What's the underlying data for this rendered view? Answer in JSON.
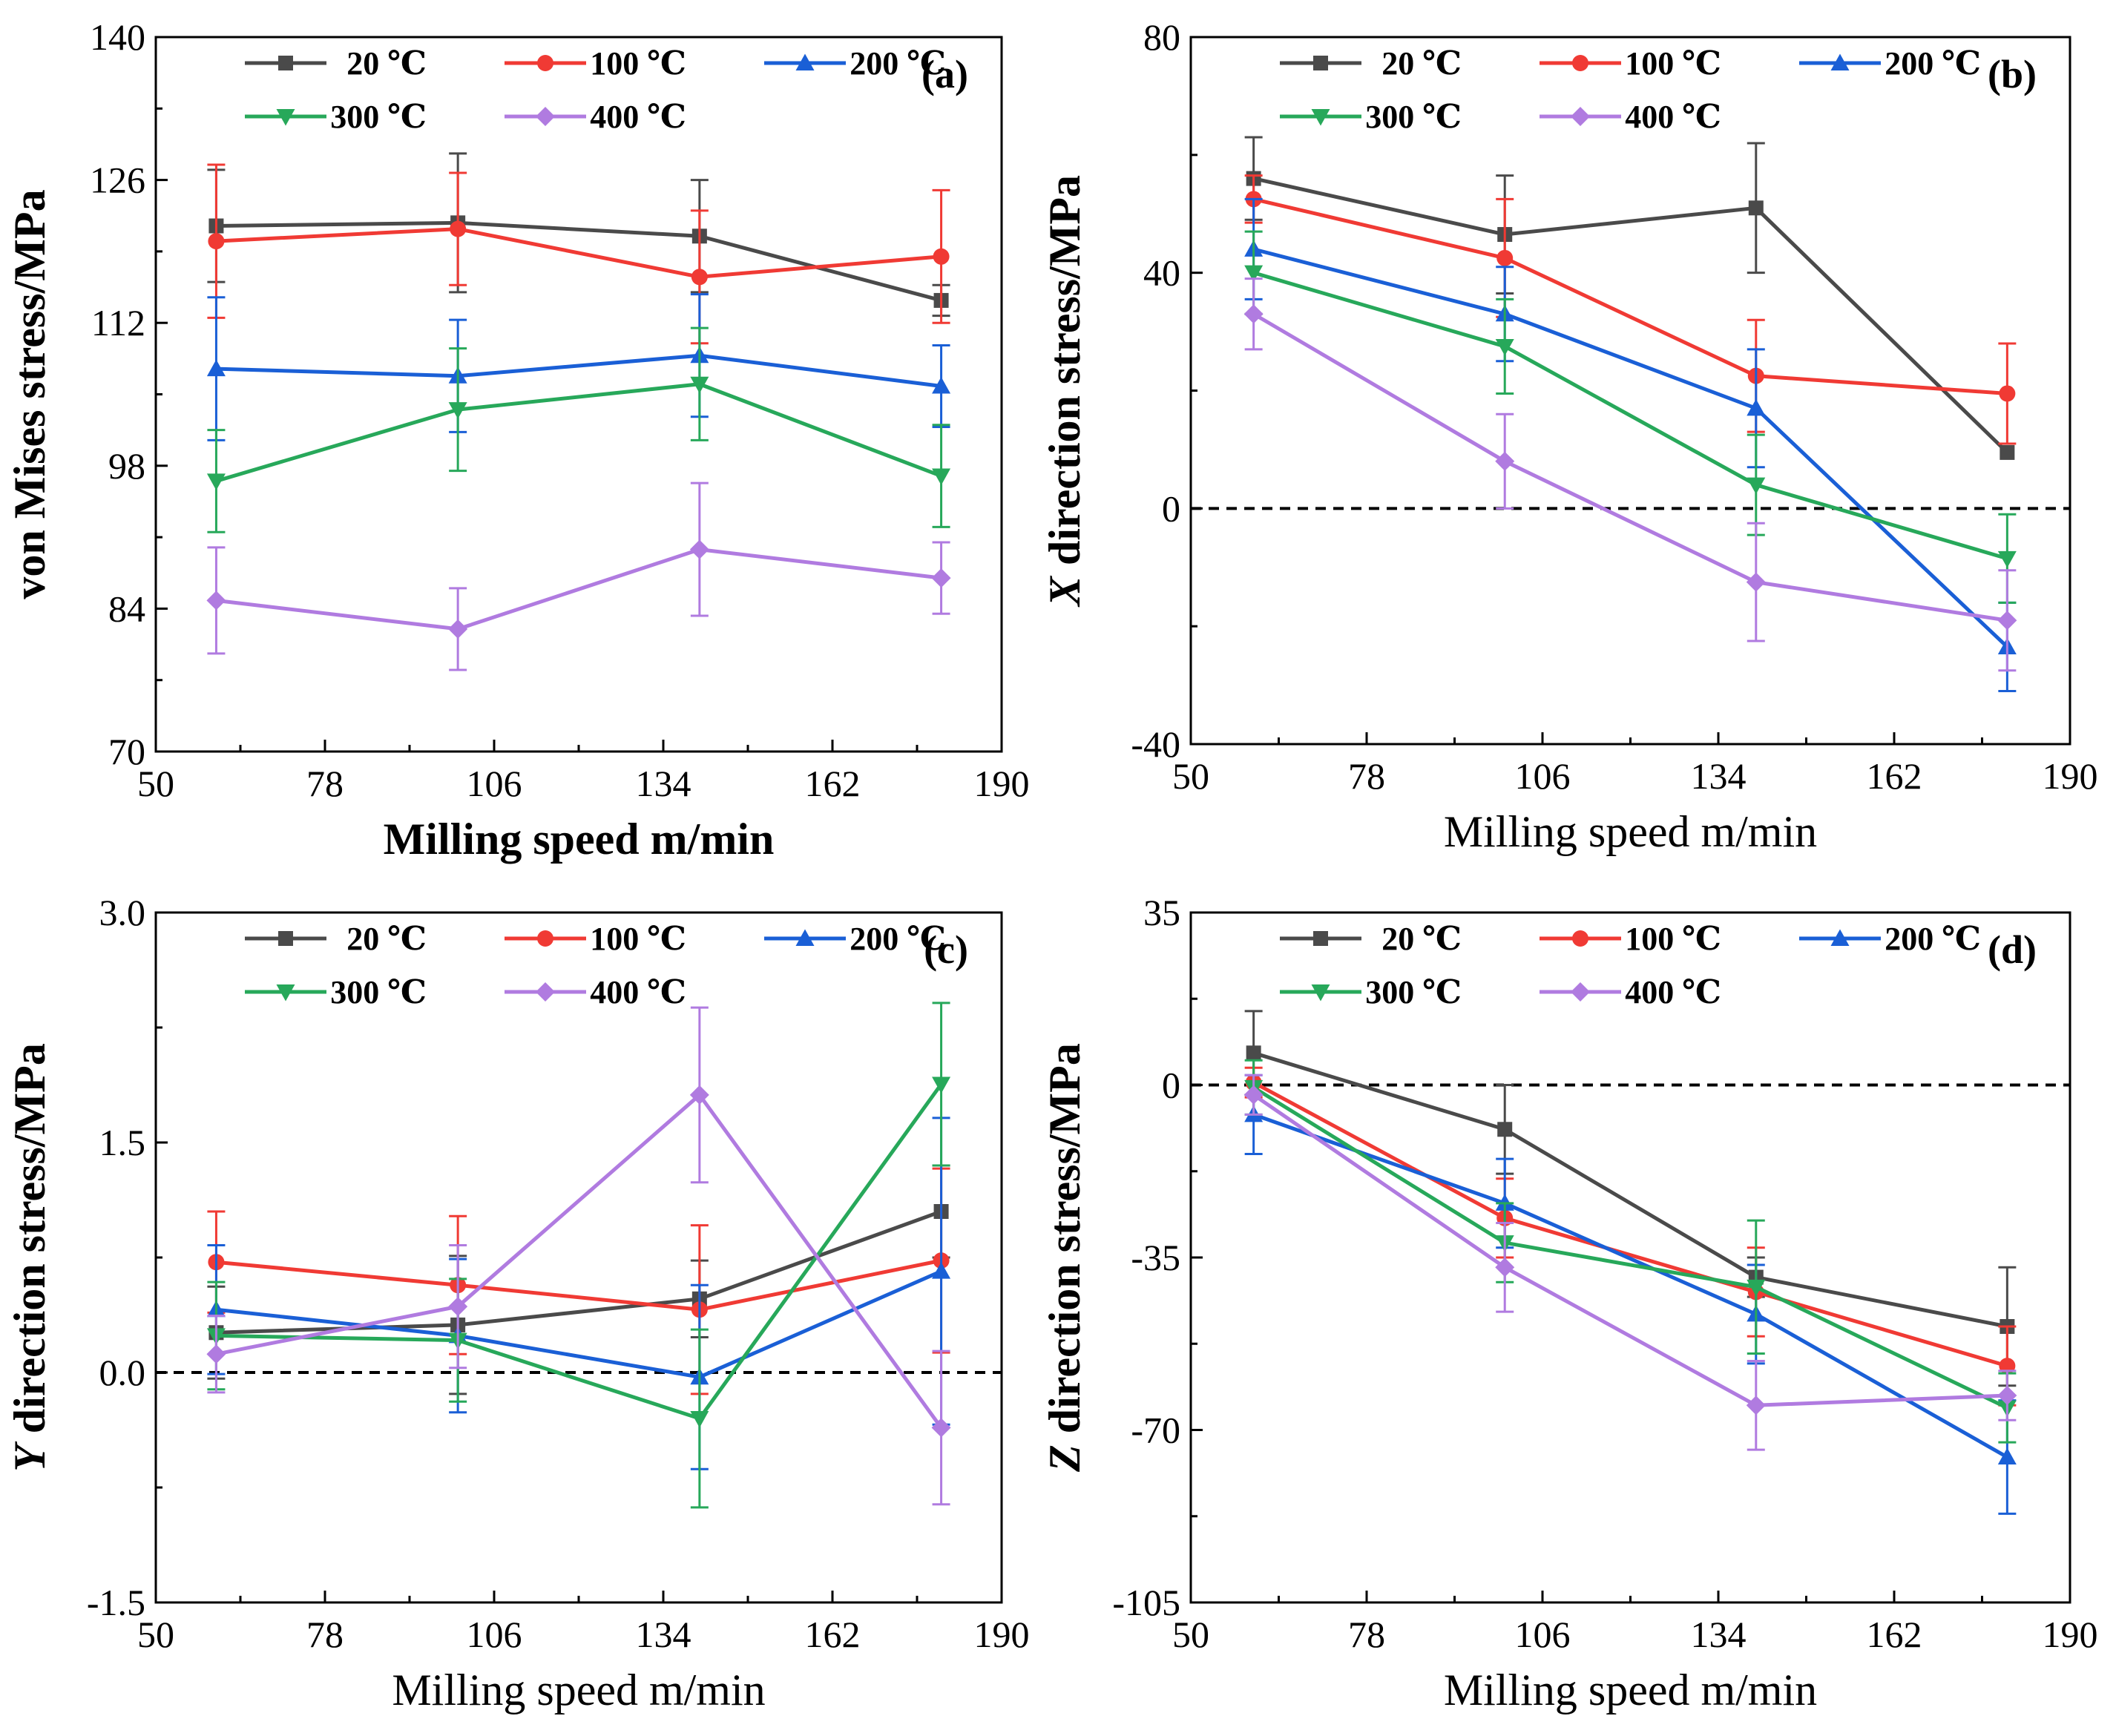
{
  "chart_data": [
    {
      "type": "line",
      "panel_label": "(a)",
      "title": "",
      "xlabel": "Milling speed m/min",
      "ylabel": "von Mises stress/MPa",
      "xlim": [
        50,
        190
      ],
      "ylim": [
        70,
        140
      ],
      "xticks": [
        50,
        78,
        106,
        134,
        162,
        190
      ],
      "yticks": [
        70,
        84,
        98,
        112,
        126,
        140
      ],
      "xtick_labels": [
        "50",
        "78",
        "106",
        "134",
        "162",
        "190"
      ],
      "ytick_labels": [
        "70",
        "84",
        "98",
        "112",
        "126",
        "140"
      ],
      "zero_line": false,
      "x": [
        60,
        100,
        140,
        180
      ],
      "legend": "top",
      "series": [
        {
          "name": "20 ℃",
          "color": "#4a4a4a",
          "marker": "square",
          "values": [
            121.5,
            121.8,
            120.5,
            114.2
          ],
          "errors": [
            5.5,
            6.8,
            5.5,
            1.5
          ]
        },
        {
          "name": "100 ℃",
          "color": "#f03a34",
          "marker": "circle",
          "values": [
            120.0,
            121.2,
            116.5,
            118.5
          ],
          "errors": [
            7.5,
            5.5,
            6.5,
            6.5
          ]
        },
        {
          "name": "200 ℃",
          "color": "#1a5fd6",
          "marker": "triangle-up",
          "values": [
            107.5,
            106.8,
            108.8,
            105.8
          ],
          "errors": [
            7.0,
            5.5,
            6.0,
            4.0
          ]
        },
        {
          "name": "300 ℃",
          "color": "#27a85a",
          "marker": "triangle-down",
          "values": [
            96.5,
            103.5,
            106.0,
            97.0
          ],
          "errors": [
            5.0,
            6.0,
            5.5,
            5.0
          ]
        },
        {
          "name": "400 ℃",
          "color": "#b07be0",
          "marker": "diamond",
          "values": [
            84.8,
            82.0,
            89.8,
            87.0
          ],
          "errors": [
            5.2,
            4.0,
            6.5,
            3.5
          ]
        }
      ]
    },
    {
      "type": "line",
      "panel_label": "(b)",
      "title": "",
      "xlabel": "Milling speed m/min",
      "ylabel_italic": "X",
      "ylabel": " direction stress/MPa",
      "xlim": [
        50,
        190
      ],
      "ylim": [
        -40,
        80
      ],
      "xticks": [
        50,
        78,
        106,
        134,
        162,
        190
      ],
      "yticks": [
        -40,
        0,
        40,
        80
      ],
      "xtick_labels": [
        "50",
        "78",
        "106",
        "134",
        "162",
        "190"
      ],
      "ytick_labels": [
        "-40",
        "0",
        "40",
        "80"
      ],
      "zero_line": true,
      "x": [
        60,
        100,
        140,
        180
      ],
      "legend": "top",
      "series": [
        {
          "name": "20 ℃",
          "color": "#4a4a4a",
          "marker": "square",
          "values": [
            56.0,
            46.5,
            51.0,
            9.5
          ],
          "errors": [
            7.0,
            10.0,
            11.0,
            0.0
          ]
        },
        {
          "name": "100 ℃",
          "color": "#f03a34",
          "marker": "circle",
          "values": [
            52.5,
            42.5,
            22.5,
            19.5
          ],
          "errors": [
            4.0,
            10.0,
            9.5,
            8.5
          ]
        },
        {
          "name": "200 ℃",
          "color": "#1a5fd6",
          "marker": "triangle-up",
          "values": [
            44.0,
            33.0,
            17.0,
            -23.5
          ],
          "errors": [
            8.5,
            8.0,
            10.0,
            7.5
          ]
        },
        {
          "name": "300 ℃",
          "color": "#27a85a",
          "marker": "triangle-down",
          "values": [
            40.0,
            27.5,
            4.0,
            -8.5
          ],
          "errors": [
            7.0,
            8.0,
            8.5,
            7.5
          ]
        },
        {
          "name": "400 ℃",
          "color": "#b07be0",
          "marker": "diamond",
          "values": [
            33.0,
            8.0,
            -12.5,
            -19.0
          ],
          "errors": [
            6.0,
            8.0,
            10.0,
            8.5
          ]
        }
      ]
    },
    {
      "type": "line",
      "panel_label": "(c)",
      "title": "",
      "xlabel": "Milling speed m/min",
      "ylabel_italic": "Y",
      "ylabel": " direction stress/MPa",
      "xlim": [
        50,
        190
      ],
      "ylim": [
        -1.5,
        3.0
      ],
      "xticks": [
        50,
        78,
        106,
        134,
        162,
        190
      ],
      "yticks": [
        -1.5,
        0,
        1.5,
        3.0
      ],
      "xtick_labels": [
        "50",
        "78",
        "106",
        "134",
        "162",
        "190"
      ],
      "ytick_labels": [
        "-1.5",
        "0.0",
        "1.5",
        "3.0"
      ],
      "zero_line": true,
      "x": [
        60,
        100,
        140,
        180
      ],
      "legend": "top",
      "series": [
        {
          "name": "20 ℃",
          "color": "#4a4a4a",
          "marker": "square",
          "values": [
            0.26,
            0.31,
            0.48,
            1.05
          ],
          "errors": [
            0.3,
            0.45,
            0.25,
            0.3
          ]
        },
        {
          "name": "100 ℃",
          "color": "#f03a34",
          "marker": "circle",
          "values": [
            0.72,
            0.57,
            0.41,
            0.73
          ],
          "errors": [
            0.33,
            0.45,
            0.55,
            0.6
          ]
        },
        {
          "name": "200 ℃",
          "color": "#1a5fd6",
          "marker": "triangle-up",
          "values": [
            0.41,
            0.24,
            -0.03,
            0.66
          ],
          "errors": [
            0.42,
            0.5,
            0.6,
            1.0
          ]
        },
        {
          "name": "300 ℃",
          "color": "#27a85a",
          "marker": "triangle-down",
          "values": [
            0.24,
            0.21,
            -0.3,
            1.88
          ],
          "errors": [
            0.35,
            0.4,
            0.58,
            0.53
          ]
        },
        {
          "name": "400 ℃",
          "color": "#b07be0",
          "marker": "diamond",
          "values": [
            0.12,
            0.43,
            1.81,
            -0.36
          ],
          "errors": [
            0.25,
            0.4,
            0.57,
            0.5
          ]
        }
      ]
    },
    {
      "type": "line",
      "panel_label": "(d)",
      "title": "",
      "xlabel": "Milling speed m/min",
      "ylabel_italic": "Z",
      "ylabel": " direction stress/MPa",
      "xlim": [
        50,
        190
      ],
      "ylim": [
        -105,
        35
      ],
      "xticks": [
        50,
        78,
        106,
        134,
        162,
        190
      ],
      "yticks": [
        -105,
        -70,
        -35,
        0,
        35
      ],
      "xtick_labels": [
        "50",
        "78",
        "106",
        "134",
        "162",
        "190"
      ],
      "ytick_labels": [
        "-105",
        "-70",
        "-35",
        "0",
        "35"
      ],
      "zero_line": true,
      "x": [
        60,
        100,
        140,
        180
      ],
      "legend": "top",
      "series": [
        {
          "name": "20 ℃",
          "color": "#4a4a4a",
          "marker": "square",
          "values": [
            6.5,
            -9.0,
            -39.0,
            -49.0
          ],
          "errors": [
            8.5,
            9.0,
            4.0,
            12.0
          ]
        },
        {
          "name": "100 ℃",
          "color": "#f03a34",
          "marker": "circle",
          "values": [
            0.5,
            -27.0,
            -42.0,
            -57.0
          ],
          "errors": [
            3.0,
            8.0,
            9.0,
            8.0
          ]
        },
        {
          "name": "200 ℃",
          "color": "#1a5fd6",
          "marker": "triangle-up",
          "values": [
            -6.0,
            -24.0,
            -46.5,
            -75.5
          ],
          "errors": [
            8.0,
            9.0,
            10.0,
            11.5
          ]
        },
        {
          "name": "300 ℃",
          "color": "#27a85a",
          "marker": "triangle-down",
          "values": [
            -0.5,
            -32.0,
            -41.0,
            -65.5
          ],
          "errors": [
            5.5,
            8.0,
            13.5,
            7.0
          ]
        },
        {
          "name": "400 ℃",
          "color": "#b07be0",
          "marker": "diamond",
          "values": [
            -2.0,
            -37.0,
            -65.0,
            -63.0
          ],
          "errors": [
            4.0,
            9.0,
            9.0,
            5.0
          ]
        }
      ]
    }
  ]
}
